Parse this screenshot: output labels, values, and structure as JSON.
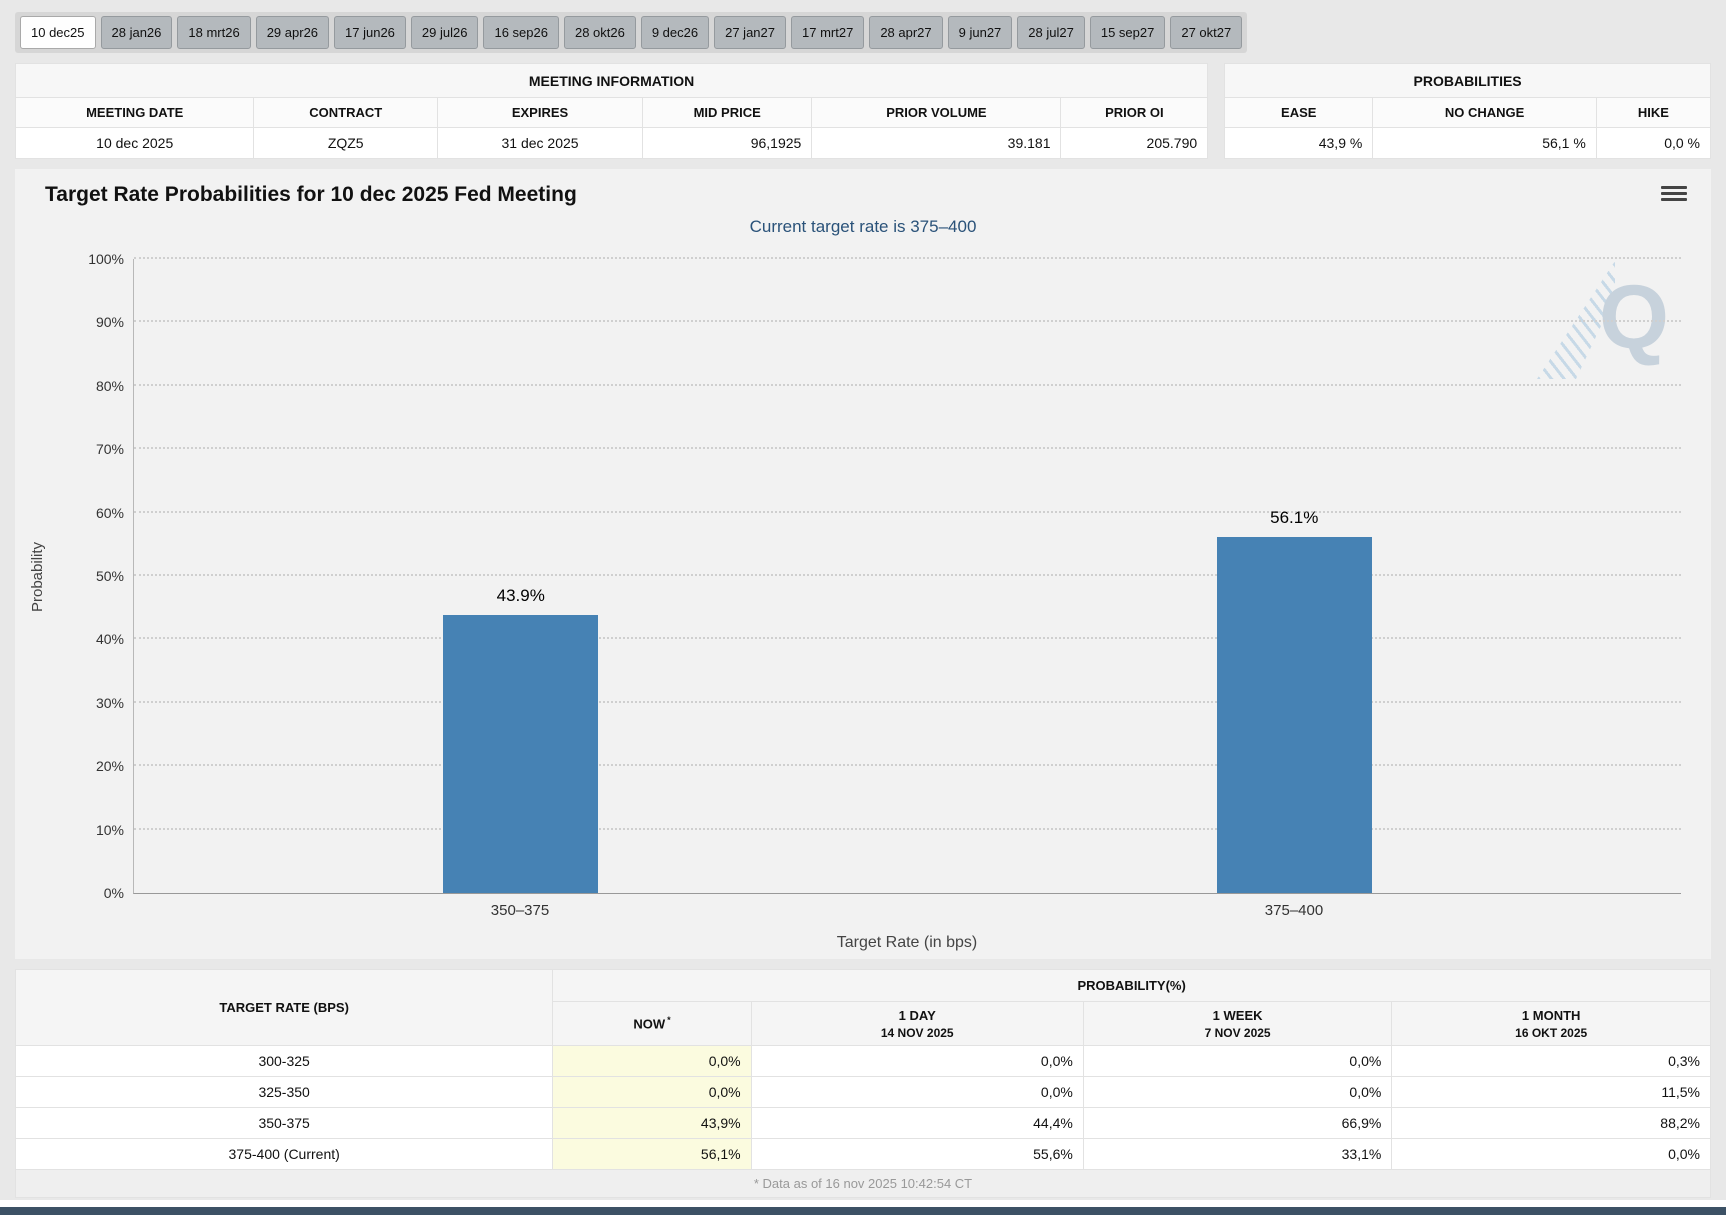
{
  "page": {
    "bg": "#e8e8e8",
    "accent_bar_color": "#3c5165"
  },
  "tabs": [
    {
      "label": "10 dec25",
      "selected": true
    },
    {
      "label": "28 jan26",
      "selected": false
    },
    {
      "label": "18 mrt26",
      "selected": false
    },
    {
      "label": "29 apr26",
      "selected": false
    },
    {
      "label": "17 jun26",
      "selected": false
    },
    {
      "label": "29 jul26",
      "selected": false
    },
    {
      "label": "16 sep26",
      "selected": false
    },
    {
      "label": "28 okt26",
      "selected": false
    },
    {
      "label": "9 dec26",
      "selected": false
    },
    {
      "label": "27 jan27",
      "selected": false
    },
    {
      "label": "17 mrt27",
      "selected": false
    },
    {
      "label": "28 apr27",
      "selected": false
    },
    {
      "label": "9 jun27",
      "selected": false
    },
    {
      "label": "28 jul27",
      "selected": false
    },
    {
      "label": "15 sep27",
      "selected": false
    },
    {
      "label": "27 okt27",
      "selected": false
    }
  ],
  "meeting_info": {
    "title": "MEETING INFORMATION",
    "columns": [
      "MEETING DATE",
      "CONTRACT",
      "EXPIRES",
      "MID PRICE",
      "PRIOR VOLUME",
      "PRIOR OI"
    ],
    "row": [
      "10 dec 2025",
      "ZQZ5",
      "31 dec 2025",
      "96,1925",
      "39.181",
      "205.790"
    ]
  },
  "probabilities_summary": {
    "title": "PROBABILITIES",
    "columns": [
      "EASE",
      "NO CHANGE",
      "HIKE"
    ],
    "row": [
      "43,9 %",
      "56,1 %",
      "0,0 %"
    ]
  },
  "chart_data": {
    "type": "bar",
    "title": "Target Rate Probabilities for 10 dec 2025 Fed Meeting",
    "subtitle": "Current target rate is 375–400",
    "subtitle_color": "#2a5279",
    "categories": [
      "350–375",
      "375–400"
    ],
    "values": [
      43.9,
      56.1
    ],
    "data_labels": [
      "43.9%",
      "56.1%"
    ],
    "xlabel": "Target Rate (in bps)",
    "ylabel": "Probability",
    "ylim": [
      0,
      100
    ],
    "ytick_step": 10,
    "yticks": [
      "0%",
      "10%",
      "20%",
      "30%",
      "40%",
      "50%",
      "60%",
      "70%",
      "80%",
      "90%",
      "100%"
    ],
    "bar_color": "#4682b4",
    "grid": "dotted horizontal",
    "legend": "none",
    "watermark_text": "Q"
  },
  "prob_table": {
    "rate_header": "TARGET RATE (BPS)",
    "group_header": "PROBABILITY(%)",
    "now_col_bg": "#fbfbdf",
    "columns": [
      {
        "line1": "NOW",
        "sup": "*",
        "line2": ""
      },
      {
        "line1": "1 DAY",
        "line2": "14 NOV 2025"
      },
      {
        "line1": "1 WEEK",
        "line2": "7 NOV 2025"
      },
      {
        "line1": "1 MONTH",
        "line2": "16 OKT 2025"
      }
    ],
    "rows": [
      {
        "rate": "300-325",
        "values": [
          "0,0%",
          "0,0%",
          "0,0%",
          "0,3%"
        ]
      },
      {
        "rate": "325-350",
        "values": [
          "0,0%",
          "0,0%",
          "0,0%",
          "11,5%"
        ]
      },
      {
        "rate": "350-375",
        "values": [
          "43,9%",
          "44,4%",
          "66,9%",
          "88,2%"
        ]
      },
      {
        "rate": "375-400 (Current)",
        "values": [
          "56,1%",
          "55,6%",
          "33,1%",
          "0,0%"
        ]
      }
    ],
    "footnote": "* Data as of 16 nov 2025 10:42:54 CT"
  }
}
